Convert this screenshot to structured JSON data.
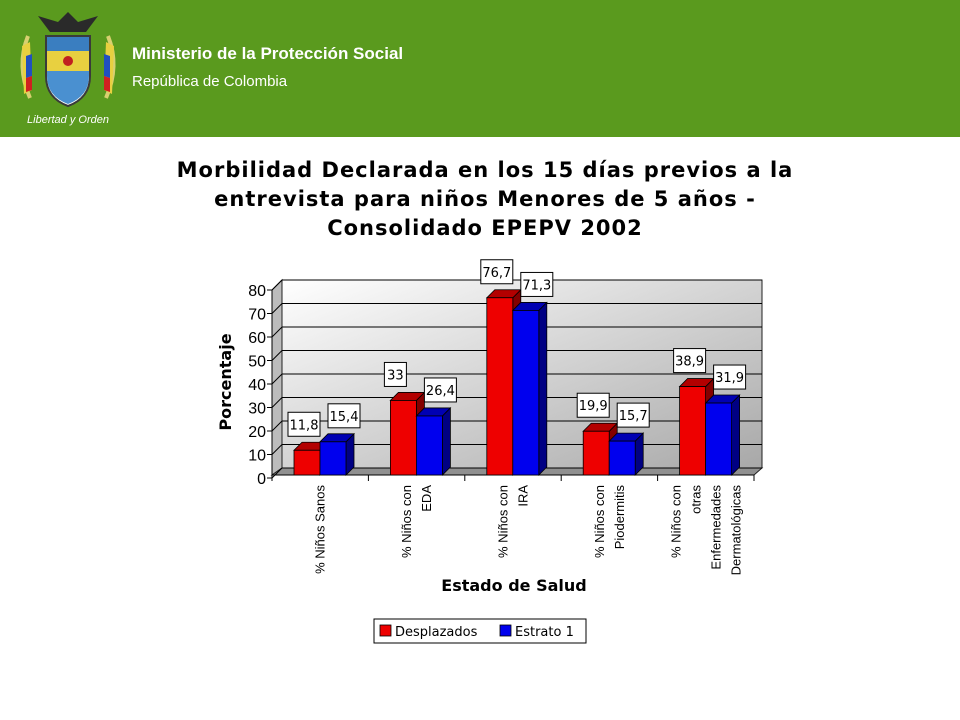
{
  "header": {
    "ministry": "Ministerio de la Protección Social",
    "republic": "República de Colombia",
    "crest_motto": "Libertad y Orden",
    "background_color": "#5a9a1e"
  },
  "chart_data": {
    "type": "bar",
    "title_lines": [
      "Morbilidad Declarada en los 15 días previos a la",
      "entrevista para niños Menores de 5 años -",
      "Consolidado EPEPV 2002"
    ],
    "xlabel": "Estado de Salud",
    "ylabel": "Porcentaje",
    "ylim": [
      0,
      80
    ],
    "yticks": [
      0,
      10,
      20,
      30,
      40,
      50,
      60,
      70,
      80
    ],
    "ytick_labels": [
      "0",
      "10",
      "20",
      "30",
      "40",
      "50",
      "60",
      "70",
      "80"
    ],
    "grid": true,
    "legend_position": "bottom",
    "categories": [
      [
        "% Niños Sanos"
      ],
      [
        "% Niños con",
        "EDA"
      ],
      [
        "% Niños con",
        "IRA"
      ],
      [
        "% Niños con",
        "Piodermitis"
      ],
      [
        "% Niños con",
        "otras",
        "Enfermedades",
        "Dermatológicas"
      ]
    ],
    "series": [
      {
        "name": "Desplazados",
        "color": "#ee0000",
        "values": [
          11.8,
          33,
          76.7,
          19.9,
          38.9
        ],
        "labels": [
          "11,8",
          "33",
          "76,7",
          "19,9",
          "38,9"
        ]
      },
      {
        "name": "Estrato 1",
        "color": "#0000ee",
        "values": [
          15.4,
          26.4,
          71.3,
          15.7,
          31.9
        ],
        "labels": [
          "15,4",
          "26,4",
          "71,3",
          "15,7",
          "31,9"
        ]
      }
    ]
  }
}
